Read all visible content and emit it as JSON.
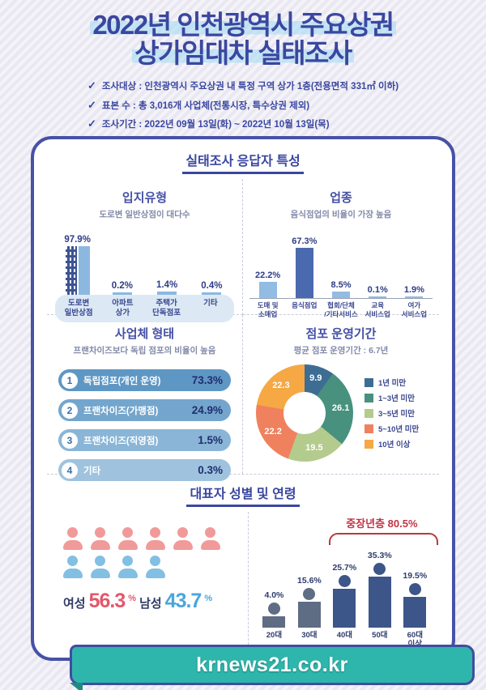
{
  "header": {
    "title_lines": [
      "2022년 인천광역시 주요상권",
      "상가임대차 실태조사"
    ],
    "check_icon": "✓",
    "bullets": [
      "조사대상 : 인천광역시 주요상권 내 특정 구역 상가 1층(전용면적 331㎡ 이하)",
      "표본 수   : 총 3,016개 사업체(전통시장, 특수상권 제외)",
      "조사기간 : 2022년 09월 13일(화) ~ 2022년 10월 13일(목)"
    ]
  },
  "card": {
    "title": "실태조사 응답자 특성",
    "bottom_title": "대표자 성별 및 연령"
  },
  "chart_data": [
    {
      "id": "location_type",
      "type": "bar",
      "title": "입지유형",
      "subtitle": "도로변 일반상점이 대다수",
      "categories": [
        "도로변\n일반상점",
        "아파트\n상가",
        "주택가\n단독점포",
        "기타"
      ],
      "values": [
        97.9,
        0.2,
        1.4,
        0.4
      ],
      "unit": "%",
      "bar_color": "#8cb8e0",
      "icon_color": "#3d5492"
    },
    {
      "id": "industry",
      "type": "bar",
      "title": "업종",
      "subtitle": "음식점업의 비율이 가장 높음",
      "categories": [
        "도매 및\n소매업",
        "음식점업",
        "협회/단체\n/기타서비스",
        "교육\n서비스업",
        "여가\n서비스업"
      ],
      "values": [
        22.2,
        67.3,
        8.5,
        0.1,
        1.9
      ],
      "unit": "%",
      "highlight_index": 1,
      "bar_color": "#92bce2",
      "highlight_color": "#4b69ae"
    },
    {
      "id": "business_form",
      "type": "table",
      "title": "사업체 형태",
      "subtitle": "프랜차이즈보다 독립 점포의 비율이 높음",
      "rows": [
        {
          "rank": "1",
          "label": "독립점포(개인 운영)",
          "value": "73.3%"
        },
        {
          "rank": "2",
          "label": "프랜차이즈(가맹점)",
          "value": "24.9%"
        },
        {
          "rank": "3",
          "label": "프랜차이즈(직영점)",
          "value": "1.5%"
        },
        {
          "rank": "4",
          "label": "기타",
          "value": "0.3%"
        }
      ],
      "row_colors": [
        "#5f97c4",
        "#74a6cd",
        "#8ab5d6",
        "#9fc3de"
      ]
    },
    {
      "id": "operation_period",
      "type": "pie",
      "title": "점포 운영기간",
      "subtitle": "평균 점포 운영기간 : 6.7년",
      "labels": [
        "1년 미만",
        "1~3년 미만",
        "3~5년 미만",
        "5~10년 미만",
        "10년 이상"
      ],
      "values": [
        9.9,
        26.1,
        19.5,
        22.2,
        22.3
      ],
      "colors": [
        "#3e6d94",
        "#48917e",
        "#b4cb8e",
        "#f0815f",
        "#f5a844"
      ],
      "legend_position": "right"
    },
    {
      "id": "gender",
      "type": "pictogram",
      "female_label": "여성",
      "female_value": "56.3",
      "female_icons": 6,
      "female_color": "#f09a99",
      "male_label": "남성",
      "male_value": "43.7",
      "male_icons": 4,
      "male_color": "#82c0e3",
      "unit": "%"
    },
    {
      "id": "age",
      "type": "bar",
      "categories": [
        "20대",
        "30대",
        "40대",
        "50대",
        "60대\n이상"
      ],
      "values": [
        4.0,
        15.6,
        25.7,
        35.3,
        19.5
      ],
      "unit": "%",
      "colors": [
        "#5e6c84",
        "#5e6c84",
        "#3d5689",
        "#3d5689",
        "#3d5689"
      ],
      "bracket": {
        "label": "중장년층 80.5%",
        "from": 2,
        "to": 4
      }
    }
  ],
  "footer": {
    "url": "krnews21.co.kr"
  }
}
